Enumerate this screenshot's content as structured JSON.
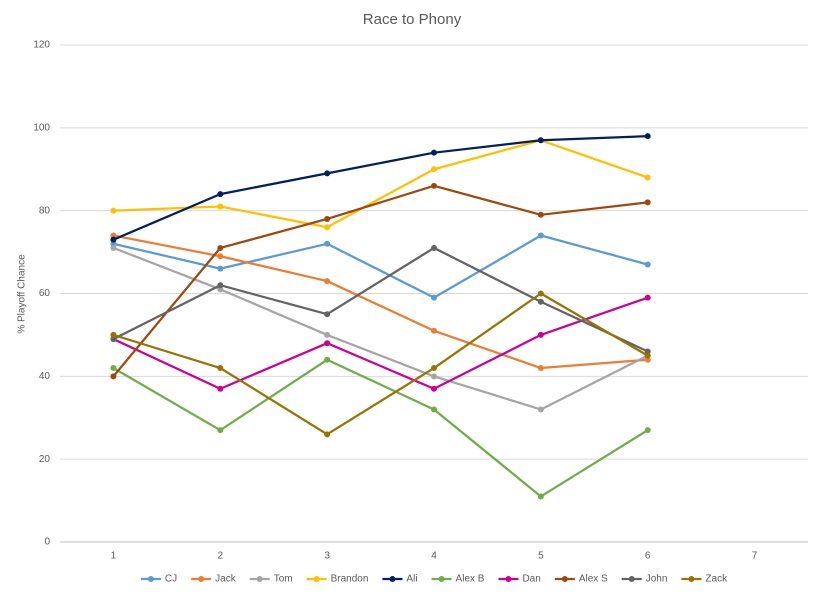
{
  "chart_data": {
    "type": "line",
    "title": "Race to Phony",
    "ylabel": "% Playoff Chance",
    "categories": [
      1,
      2,
      3,
      4,
      5,
      6,
      7
    ],
    "ylim": [
      0,
      120
    ],
    "yticks": [
      0,
      20,
      40,
      60,
      80,
      100,
      120
    ],
    "grid": true,
    "legend": "bottom",
    "series": [
      {
        "name": "CJ",
        "color": "#5b9bd5",
        "values": [
          72,
          66,
          72,
          59,
          74,
          67,
          null
        ]
      },
      {
        "name": "Jack",
        "color": "#ed7d31",
        "values": [
          74,
          69,
          63,
          51,
          42,
          44,
          null
        ]
      },
      {
        "name": "Tom",
        "color": "#a5a5a5",
        "values": [
          71,
          61,
          50,
          40,
          32,
          45,
          null
        ]
      },
      {
        "name": "Brandon",
        "color": "#ffc000",
        "values": [
          80,
          81,
          76,
          90,
          97,
          88,
          null
        ]
      },
      {
        "name": "Ali",
        "color": "#002060",
        "values": [
          73,
          84,
          89,
          94,
          97,
          98,
          null
        ]
      },
      {
        "name": "Alex B",
        "color": "#70ad47",
        "values": [
          42,
          27,
          44,
          32,
          11,
          27,
          null
        ]
      },
      {
        "name": "Dan",
        "color": "#cc0099",
        "values": [
          49,
          37,
          48,
          37,
          50,
          59,
          null
        ]
      },
      {
        "name": "Alex S",
        "color": "#9e480e",
        "values": [
          40,
          71,
          78,
          86,
          79,
          82,
          null
        ]
      },
      {
        "name": "John",
        "color": "#636363",
        "values": [
          49,
          62,
          55,
          71,
          58,
          46,
          null
        ]
      },
      {
        "name": "Zack",
        "color": "#997300",
        "values": [
          50,
          42,
          26,
          42,
          60,
          45,
          null
        ]
      }
    ]
  }
}
